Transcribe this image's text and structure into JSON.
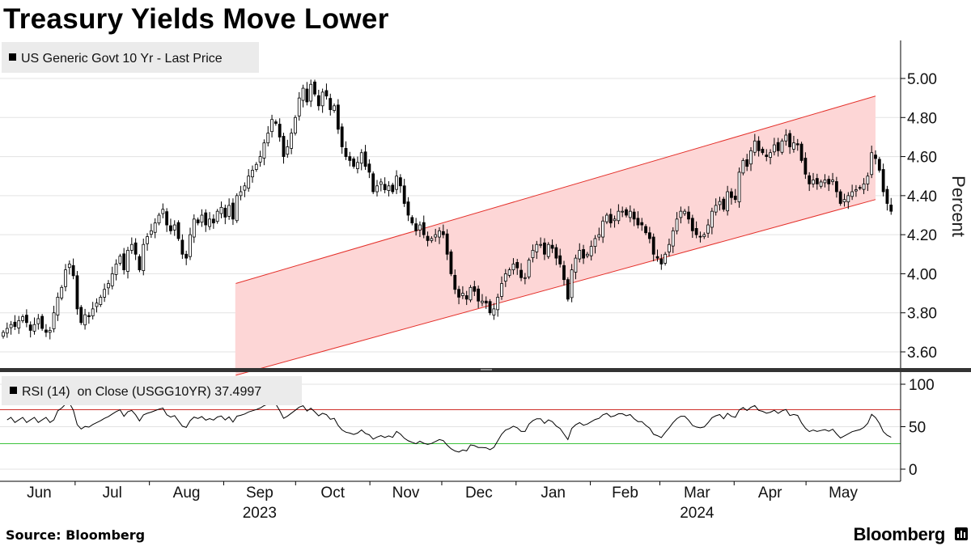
{
  "title": "Treasury Yields Move Lower",
  "source": "Source: Bloomberg",
  "brand": "Bloomberg",
  "chart_data": {
    "type": "candlestick",
    "main_panel": {
      "legend": "US Generic Govt 10 Yr - Last Price",
      "ylabel": "Percent",
      "ylim": [
        3.5,
        5.2
      ],
      "yticks": [
        "5.00",
        "4.80",
        "4.60",
        "4.40",
        "4.20",
        "4.00",
        "3.80",
        "3.60"
      ],
      "channel": {
        "start_date": "2023-09-06",
        "end_date": "2024-05-30",
        "upper": [
          3.95,
          4.91
        ],
        "lower": [
          3.48,
          4.38
        ],
        "fill_color": "#fdd6d6",
        "line_color": "#e4302a"
      },
      "daily_closes": [
        3.7,
        3.72,
        3.74,
        3.73,
        3.76,
        3.78,
        3.75,
        3.71,
        3.74,
        3.77,
        3.72,
        3.7,
        3.71,
        3.8,
        3.88,
        3.93,
        4.02,
        4.05,
        3.99,
        3.82,
        3.75,
        3.79,
        3.78,
        3.82,
        3.85,
        3.88,
        3.92,
        3.95,
        4.0,
        4.05,
        4.09,
        4.02,
        4.12,
        4.15,
        4.1,
        4.02,
        4.15,
        4.19,
        4.22,
        4.26,
        4.3,
        4.33,
        4.25,
        4.22,
        4.25,
        4.18,
        4.1,
        4.08,
        4.2,
        4.28,
        4.26,
        4.3,
        4.25,
        4.28,
        4.26,
        4.32,
        4.34,
        4.29,
        4.35,
        4.28,
        4.4,
        4.42,
        4.45,
        4.5,
        4.53,
        4.56,
        4.6,
        4.67,
        4.72,
        4.79,
        4.77,
        4.7,
        4.6,
        4.65,
        4.72,
        4.8,
        4.9,
        4.95,
        4.88,
        4.97,
        4.92,
        4.86,
        4.93,
        4.91,
        4.84,
        4.86,
        4.74,
        4.65,
        4.6,
        4.58,
        4.55,
        4.57,
        4.62,
        4.55,
        4.52,
        4.42,
        4.45,
        4.47,
        4.43,
        4.45,
        4.42,
        4.5,
        4.45,
        4.36,
        4.3,
        4.26,
        4.22,
        4.25,
        4.2,
        4.17,
        4.18,
        4.2,
        4.22,
        4.2,
        4.1,
        4.0,
        3.92,
        3.88,
        3.9,
        3.87,
        3.93,
        3.91,
        3.86,
        3.86,
        3.85,
        3.8,
        3.82,
        3.88,
        3.95,
        4.0,
        4.02,
        4.05,
        4.03,
        3.98,
        3.98,
        4.07,
        4.12,
        4.15,
        4.15,
        4.1,
        4.15,
        4.13,
        4.08,
        4.05,
        3.97,
        3.87,
        4.02,
        4.08,
        4.12,
        4.08,
        4.1,
        4.14,
        4.18,
        4.2,
        4.27,
        4.3,
        4.26,
        4.28,
        4.32,
        4.32,
        4.3,
        4.32,
        4.28,
        4.25,
        4.25,
        4.21,
        4.18,
        4.1,
        4.08,
        4.05,
        4.1,
        4.15,
        4.22,
        4.28,
        4.32,
        4.32,
        4.28,
        4.22,
        4.2,
        4.19,
        4.2,
        4.25,
        4.32,
        4.35,
        4.37,
        4.33,
        4.42,
        4.39,
        4.38,
        4.52,
        4.58,
        4.55,
        4.63,
        4.68,
        4.63,
        4.62,
        4.6,
        4.62,
        4.66,
        4.63,
        4.68,
        4.71,
        4.65,
        4.67,
        4.66,
        4.58,
        4.51,
        4.46,
        4.48,
        4.46,
        4.47,
        4.48,
        4.46,
        4.48,
        4.42,
        4.36,
        4.38,
        4.4,
        4.42,
        4.43,
        4.44,
        4.46,
        4.5,
        4.62,
        4.59,
        4.53,
        4.42,
        4.36,
        4.32
      ]
    },
    "rsi_panel": {
      "legend": "RSI (14)  on Close (USGG10YR) 37.4997",
      "ylim": [
        0,
        100
      ],
      "yticks": [
        "100",
        "50",
        "0"
      ],
      "overbought": 70,
      "oversold": 30,
      "overbought_color": "#d0302a",
      "oversold_color": "#3cc43c",
      "last_value": 37.4997
    },
    "x_axis": {
      "months": [
        "Jun",
        "Jul",
        "Aug",
        "Sep",
        "Oct",
        "Nov",
        "Dec",
        "Jan",
        "Feb",
        "Mar",
        "Apr",
        "May"
      ],
      "years": [
        "2023",
        "2024"
      ]
    }
  }
}
